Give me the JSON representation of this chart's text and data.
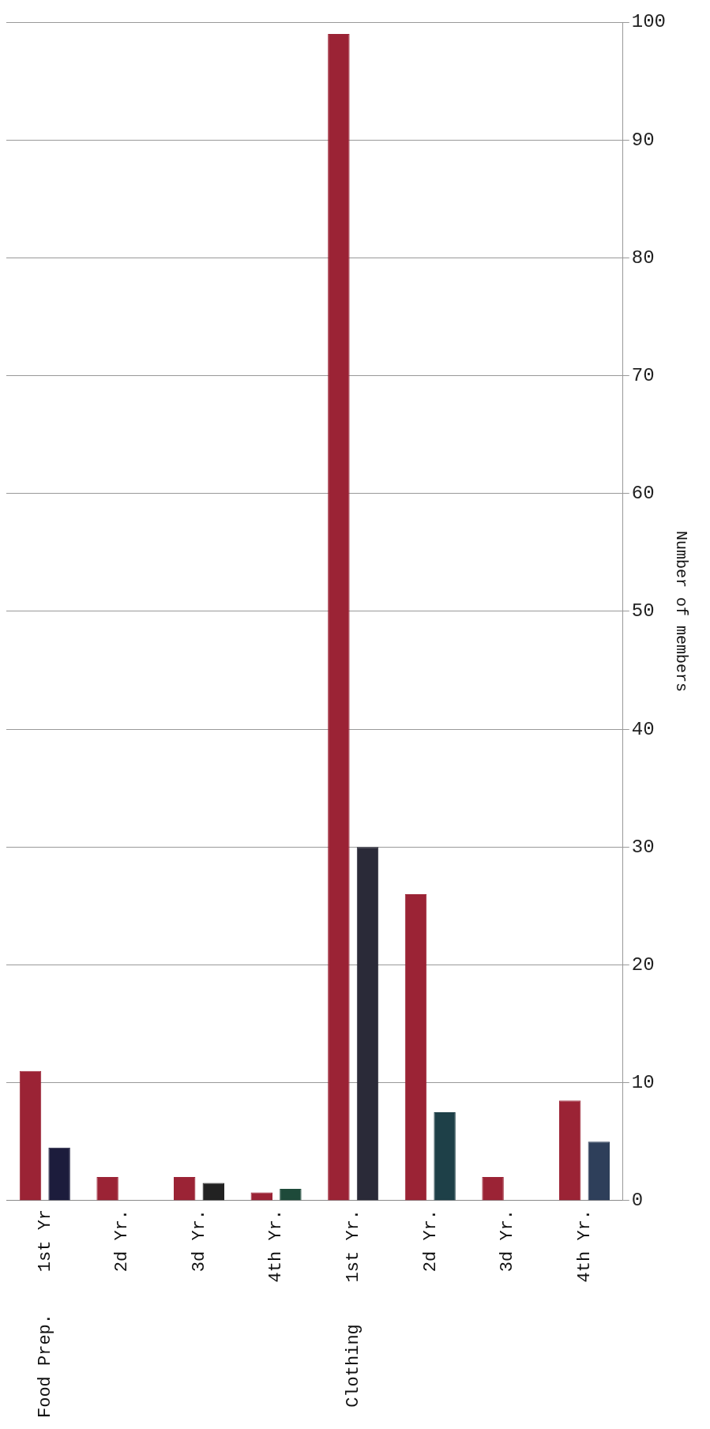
{
  "chart_data": {
    "type": "bar",
    "xlabel": null,
    "ylabel": "Number of members",
    "categories": [
      "Food Prep.    1st Yr",
      "2d Yr.",
      "3d Yr.",
      "4th Yr.",
      "Clothing    1st Yr.",
      "2d Yr.",
      "3d Yr.",
      "4th Yr."
    ],
    "series": [
      {
        "color": "#9b2335",
        "values": [
          11,
          2,
          2,
          0.7,
          99,
          26,
          2,
          8.5
        ]
      },
      {
        "colors": [
          "#1c1c3c",
          "#1c1c3c",
          "#222222",
          "#1e4a3a",
          "#2a2a38",
          "#1e4048",
          "#1e4048",
          "#2e3f5a"
        ],
        "values": [
          4.5,
          null,
          1.5,
          1,
          30,
          7.5,
          null,
          5
        ]
      }
    ],
    "ylim": [
      0,
      100
    ],
    "yticks": [
      0,
      10,
      20,
      30,
      40,
      50,
      60,
      70,
      80,
      90,
      100
    ],
    "grid": "y",
    "legend": false
  }
}
